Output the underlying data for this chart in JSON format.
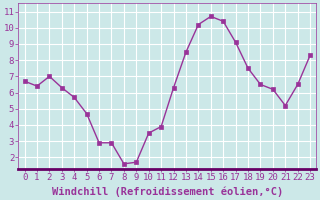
{
  "x": [
    0,
    1,
    2,
    3,
    4,
    5,
    6,
    7,
    8,
    9,
    10,
    11,
    12,
    13,
    14,
    15,
    16,
    17,
    18,
    19,
    20,
    21,
    22,
    23
  ],
  "y": [
    6.7,
    6.4,
    7.0,
    6.3,
    5.7,
    4.7,
    2.9,
    2.9,
    1.6,
    1.7,
    3.5,
    3.9,
    6.3,
    8.5,
    10.2,
    10.7,
    10.4,
    9.1,
    7.5,
    6.5,
    6.2,
    5.2,
    6.5,
    8.3
  ],
  "line_color": "#993399",
  "marker_color": "#993399",
  "bg_color": "#cce8e8",
  "grid_color": "#ffffff",
  "xlabel": "Windchill (Refroidissement éolien,°C)",
  "ylim": [
    1.3,
    11.5
  ],
  "xlim": [
    -0.5,
    23.5
  ],
  "yticks": [
    2,
    3,
    4,
    5,
    6,
    7,
    8,
    9,
    10,
    11
  ],
  "xticks": [
    0,
    1,
    2,
    3,
    4,
    5,
    6,
    7,
    8,
    9,
    10,
    11,
    12,
    13,
    14,
    15,
    16,
    17,
    18,
    19,
    20,
    21,
    22,
    23
  ],
  "tick_fontsize": 6.5,
  "xlabel_fontsize": 7.5,
  "axis_label_color": "#993399",
  "tick_color": "#993399",
  "spine_color": "#993399",
  "spine_bottom_color": "#660066"
}
